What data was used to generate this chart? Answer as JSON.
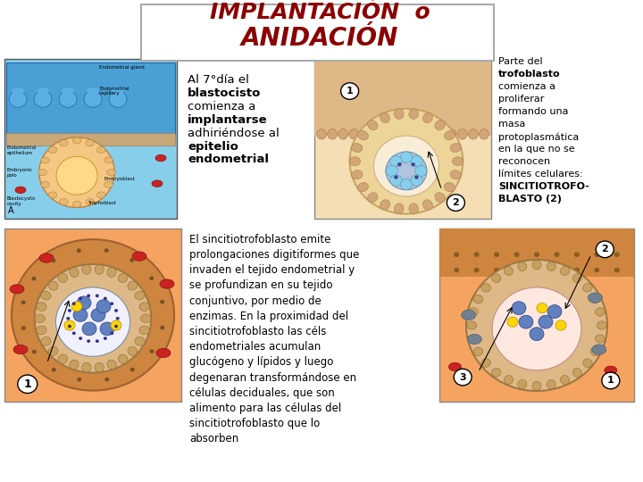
{
  "title_line1": "IMPLANTACIÓN  o",
  "title_line2": "ANIDACIÓN",
  "title_color": "#8B0000",
  "bg_color": "#FFFFFF",
  "font_size_title1": 18,
  "font_size_title2": 20,
  "font_size_main": 9,
  "right_lines": [
    [
      "Parte del",
      false
    ],
    [
      "trofoblasto",
      true
    ],
    [
      "comienza a",
      false
    ],
    [
      "proliferar",
      false
    ],
    [
      "formando una",
      false
    ],
    [
      "masa",
      false
    ],
    [
      "protoplasmática",
      false
    ],
    [
      "en la que no se",
      false
    ],
    [
      "reconocen",
      false
    ],
    [
      "límites celulares:",
      false
    ],
    [
      "SINCITIOTROFO-",
      true
    ],
    [
      "BLASTO (2)",
      true
    ]
  ],
  "bottom_text": "El sincitiotrofoblasto emite\nprolongaciones digitiformes que\ninvaden el tejido endometrial y\nse profundizan en su tejido\nconjuntivo, por medio de\nenzimas. En la proximidad del\nsincitiotrofoblasto las céls\nendometriales acumulan\nglucógeno y lípidos y luego\ndegenaran transformándose en\ncélulas deciduales, que son\nalimento para las células del\nsincitiotrofoblasto que lo\nabsorben"
}
